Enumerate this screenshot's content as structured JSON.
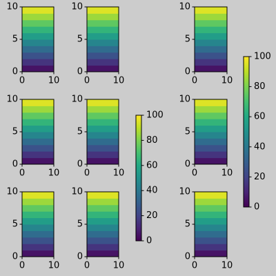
{
  "chart_data": [
    {
      "type": "heatmap",
      "xlim": [
        0,
        10
      ],
      "ylim": [
        0,
        10
      ],
      "xticks": [
        0,
        10
      ],
      "yticks": [
        0,
        5,
        10
      ],
      "values": [
        5,
        15,
        25,
        35,
        45,
        55,
        65,
        75,
        85,
        95
      ]
    },
    {
      "type": "heatmap",
      "xlim": [
        0,
        10
      ],
      "ylim": [
        0,
        10
      ],
      "xticks": [
        0,
        10
      ],
      "yticks": [
        0,
        5,
        10
      ],
      "values": [
        5,
        15,
        25,
        35,
        45,
        55,
        65,
        75,
        85,
        95
      ]
    },
    {
      "type": "heatmap",
      "xlim": [
        0,
        10
      ],
      "ylim": [
        0,
        10
      ],
      "xticks": [
        0,
        10
      ],
      "yticks": [
        0,
        5,
        10
      ],
      "values": [
        5,
        15,
        25,
        35,
        45,
        55,
        65,
        75,
        85,
        95
      ]
    },
    {
      "type": "heatmap",
      "xlim": [
        0,
        10
      ],
      "ylim": [
        0,
        10
      ],
      "xticks": [
        0,
        10
      ],
      "yticks": [
        0,
        5,
        10
      ],
      "values": [
        5,
        15,
        25,
        35,
        45,
        55,
        65,
        75,
        85,
        95
      ]
    },
    {
      "type": "heatmap",
      "xlim": [
        0,
        10
      ],
      "ylim": [
        0,
        10
      ],
      "xticks": [
        0,
        10
      ],
      "yticks": [
        0,
        5,
        10
      ],
      "values": [
        5,
        15,
        25,
        35,
        45,
        55,
        65,
        75,
        85,
        95
      ]
    },
    {
      "type": "heatmap",
      "xlim": [
        0,
        10
      ],
      "ylim": [
        0,
        10
      ],
      "xticks": [
        0,
        10
      ],
      "yticks": [
        0,
        5,
        10
      ],
      "values": [
        5,
        15,
        25,
        35,
        45,
        55,
        65,
        75,
        85,
        95
      ]
    },
    {
      "type": "heatmap",
      "xlim": [
        0,
        10
      ],
      "ylim": [
        0,
        10
      ],
      "xticks": [
        0,
        10
      ],
      "yticks": [
        0,
        5,
        10
      ],
      "values": [
        5,
        15,
        25,
        35,
        45,
        55,
        65,
        75,
        85,
        95
      ]
    },
    {
      "type": "heatmap",
      "xlim": [
        0,
        10
      ],
      "ylim": [
        0,
        10
      ],
      "xticks": [
        0,
        10
      ],
      "yticks": [
        0,
        5,
        10
      ],
      "values": [
        5,
        15,
        25,
        35,
        45,
        55,
        65,
        75,
        85,
        95
      ]
    },
    {
      "type": "heatmap",
      "xlim": [
        0,
        10
      ],
      "ylim": [
        0,
        10
      ],
      "xticks": [
        0,
        10
      ],
      "yticks": [
        0,
        5,
        10
      ],
      "values": [
        5,
        15,
        25,
        35,
        45,
        55,
        65,
        75,
        85,
        95
      ]
    },
    {
      "type": "colorbar",
      "ylim": [
        0,
        100
      ],
      "yticks": [
        0,
        20,
        40,
        60,
        80,
        100
      ]
    },
    {
      "type": "colorbar",
      "ylim": [
        0,
        100
      ],
      "yticks": [
        0,
        20,
        40,
        60,
        80,
        100
      ]
    }
  ]
}
